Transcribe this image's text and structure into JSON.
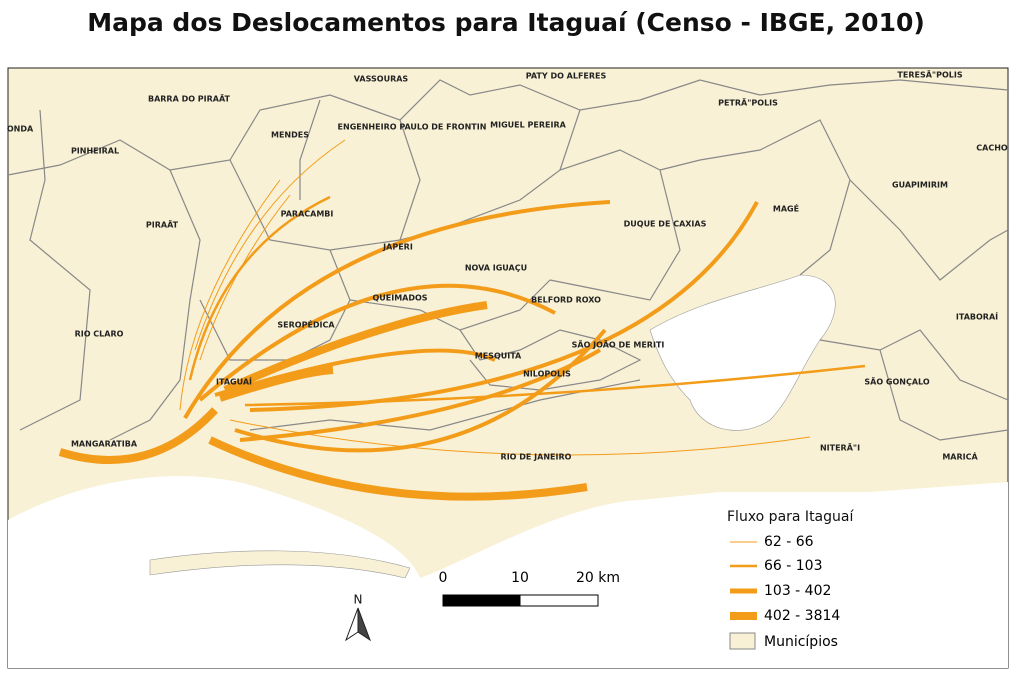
{
  "title": "Mapa dos Deslocamentos para Itaguaí (Censo - IBGE, 2010)",
  "map": {
    "labels": [
      "VASSOURAS",
      "PATY DO ALFERES",
      "TERESÃ\"POLIS",
      "BARRA DO PIRAÃT",
      "PETRÃ\"POLIS",
      "ONDA",
      "MENDES",
      "ENGENHEIRO PAULO DE FRONTIN",
      "MIGUEL PEREIRA",
      "CACHO",
      "PINHEIRAL",
      "GUAPIMIRIM",
      "PARACAMBI",
      "MAGÉ",
      "DUQUE DE CAXIAS",
      "PIRAÃT",
      "JAPERI",
      "NOVA IGUAÇU",
      "QUEIMADOS",
      "BELFORD ROXO",
      "ITABORAÍ",
      "SEROPÉDICA",
      "RIO CLARO",
      "SÃO JOÃO DE MERITI",
      "MESQUITA",
      "NILOPOLIS",
      "ITAGUAÍ",
      "SÃO GONÇALO",
      "MANGARATIBA",
      "NITERÃ\"I",
      "RIO DE JANEIRO",
      "MARICÁ"
    ],
    "north": "N"
  },
  "scale": {
    "labels": [
      "0",
      "10",
      "20 km"
    ]
  },
  "legend": {
    "title": "Fluxo para Itaguaí",
    "items": [
      "62 - 66",
      "66 - 103",
      "103 - 402",
      "402 - 3814",
      "Municípios"
    ]
  }
}
